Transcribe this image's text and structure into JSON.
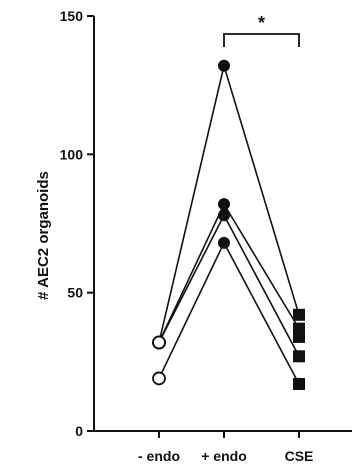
{
  "chart_data": {
    "type": "line",
    "ylabel": "# AEC2 organoids",
    "xlabel": "",
    "categories": [
      "- endo",
      "+ endo",
      "CSE"
    ],
    "ylim": [
      0,
      150
    ],
    "yticks": [
      0,
      50,
      100,
      150
    ],
    "grid": false,
    "series": [
      {
        "values": [
          32,
          132,
          42
        ]
      },
      {
        "values": [
          32,
          82,
          37
        ]
      },
      {
        "values": [
          32,
          78,
          27
        ]
      },
      {
        "values": [
          19,
          68,
          17
        ]
      }
    ],
    "unpaired": [
      {
        "category": "CSE",
        "value": 34
      }
    ],
    "markers": {
      "- endo": "open-circle",
      "+ endo": "filled-circle",
      "CSE": "filled-square"
    },
    "significance": {
      "from": "+ endo",
      "to": "CSE",
      "label": "*"
    },
    "colors": {
      "ink": "#111111",
      "background": "#ffffff"
    }
  }
}
